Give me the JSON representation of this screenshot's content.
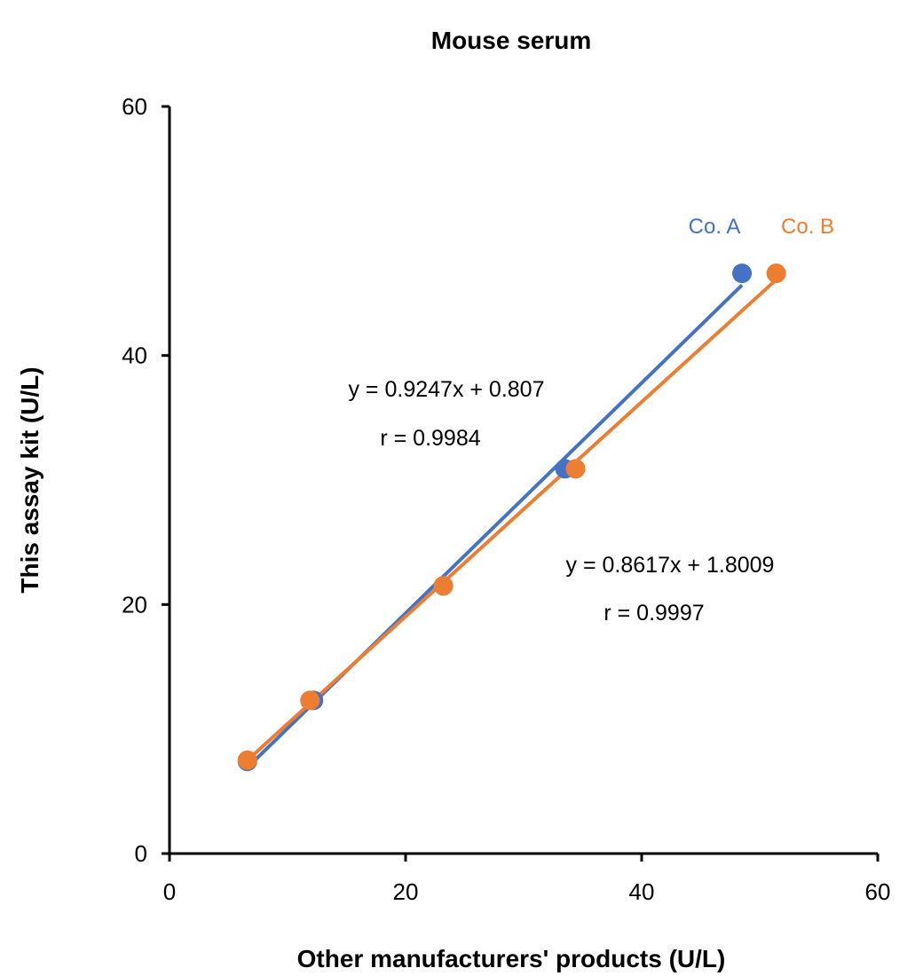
{
  "chart_data": {
    "type": "scatter",
    "title": "Mouse serum",
    "xlabel": "Other manufacturers' products (U/L)",
    "ylabel": "This assay kit (U/L)",
    "xlim": [
      0,
      60
    ],
    "ylim": [
      0,
      60
    ],
    "xticks": [
      0,
      20,
      40,
      60
    ],
    "yticks": [
      0,
      20,
      40,
      60
    ],
    "grid": false,
    "legend": "none",
    "series": [
      {
        "name": "Co. A",
        "color": "#4472C4",
        "x": [
          6.6,
          12.2,
          23.2,
          33.5,
          48.5
        ],
        "y": [
          7.4,
          12.3,
          21.5,
          30.9,
          46.6
        ],
        "trendline": {
          "slope": 0.9247,
          "intercept": 0.807
        },
        "equation": "y = 0.9247x + 0.807",
        "r_label": "r = 0.9984"
      },
      {
        "name": "Co. B",
        "color": "#ED7D31",
        "x": [
          6.6,
          11.9,
          23.2,
          34.4,
          51.4
        ],
        "y": [
          7.5,
          12.3,
          21.5,
          30.9,
          46.6
        ],
        "trendline": {
          "slope": 0.8617,
          "intercept": 1.8009
        },
        "equation": "y = 0.8617x + 1.8009",
        "r_label": "r = 0.9997"
      }
    ]
  }
}
